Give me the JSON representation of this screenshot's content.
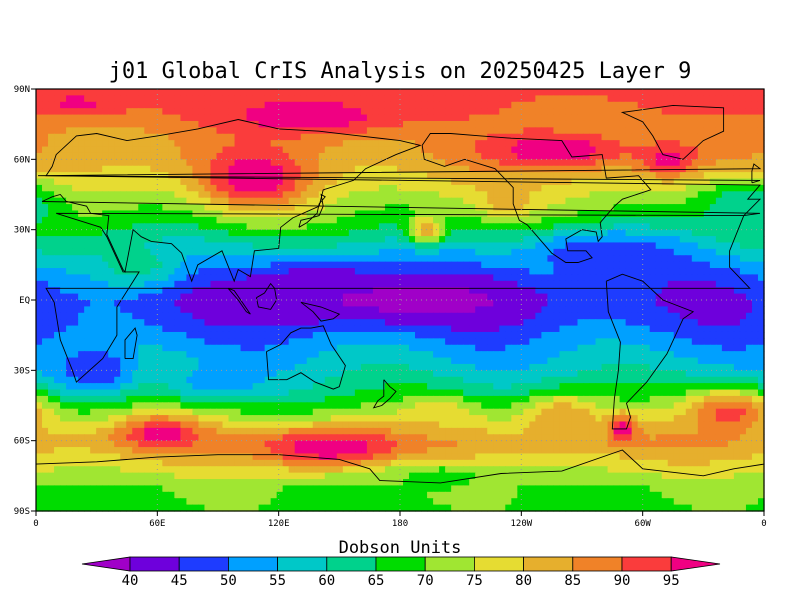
{
  "colors": {
    "frame": "#000000",
    "grid": "#9a9a9a",
    "coast": "#000000",
    "background": "#ffffff"
  },
  "chart_data": {
    "type": "heatmap",
    "title": "j01 Global CrIS Analysis on 20250425 Layer 9",
    "colorbar_label": "Dobson Units",
    "x_ticks": [
      "0",
      "60E",
      "120E",
      "180",
      "120W",
      "60W",
      "0"
    ],
    "y_ticks": [
      "90N",
      "60N",
      "30N",
      "EQ",
      "30S",
      "60S",
      "90S"
    ],
    "xlim": [
      0,
      360
    ],
    "ylim": [
      -90,
      90
    ],
    "grid": true,
    "legend": "bottom",
    "colorbar": {
      "labels": [
        "40",
        "45",
        "50",
        "55",
        "60",
        "65",
        "70",
        "75",
        "80",
        "85",
        "90",
        "95"
      ],
      "levels": [
        40,
        45,
        50,
        55,
        60,
        65,
        70,
        75,
        80,
        85,
        90,
        95
      ],
      "colors": [
        "#a000c8",
        "#6e00dc",
        "#1e3cff",
        "#00a0ff",
        "#00c8c8",
        "#00d28c",
        "#00dc00",
        "#a0e632",
        "#e6dc32",
        "#e6af2d",
        "#f08228",
        "#fa3c3c",
        "#f00082"
      ]
    },
    "zonal_mean_values": [
      {
        "lat": 90,
        "du": 92
      },
      {
        "lat": 80,
        "du": 89
      },
      {
        "lat": 70,
        "du": 85
      },
      {
        "lat": 60,
        "du": 84
      },
      {
        "lat": 50,
        "du": 79
      },
      {
        "lat": 40,
        "du": 73
      },
      {
        "lat": 30,
        "du": 66
      },
      {
        "lat": 20,
        "du": 57
      },
      {
        "lat": 10,
        "du": 49
      },
      {
        "lat": 0,
        "du": 46
      },
      {
        "lat": -10,
        "du": 48
      },
      {
        "lat": -20,
        "du": 53
      },
      {
        "lat": -30,
        "du": 58
      },
      {
        "lat": -40,
        "du": 64
      },
      {
        "lat": -50,
        "du": 74
      },
      {
        "lat": -60,
        "du": 84
      },
      {
        "lat": -70,
        "du": 78
      },
      {
        "lat": -80,
        "du": 70
      },
      {
        "lat": -90,
        "du": 69
      }
    ],
    "anomalies": [
      {
        "lon": 135,
        "lat": 78,
        "du": 100,
        "rlon": 40,
        "rlat": 8
      },
      {
        "lon": 20,
        "lat": 84,
        "du": 96,
        "rlon": 25,
        "rlat": 5
      },
      {
        "lon": 108,
        "lat": 52,
        "du": 100,
        "rlon": 25,
        "rlat": 12
      },
      {
        "lon": 258,
        "lat": 64,
        "du": 100,
        "rlon": 35,
        "rlat": 8
      },
      {
        "lon": 313,
        "lat": 60,
        "du": 98,
        "rlon": 15,
        "rlat": 7
      },
      {
        "lon": 193,
        "lat": 30,
        "du": 85,
        "rlon": 8,
        "rlat": 6
      },
      {
        "lon": 233,
        "lat": 42,
        "du": 85,
        "rlon": 10,
        "rlat": 7
      },
      {
        "lon": 350,
        "lat": 40,
        "du": 60,
        "rlon": 25,
        "rlat": 12
      },
      {
        "lon": 180,
        "lat": 0,
        "du": 38,
        "rlon": 70,
        "rlat": 10
      },
      {
        "lon": 140,
        "lat": 5,
        "du": 40,
        "rlon": 30,
        "rlat": 12
      },
      {
        "lon": 50,
        "lat": 15,
        "du": 62,
        "rlon": 25,
        "rlat": 10
      },
      {
        "lon": 280,
        "lat": 20,
        "du": 45,
        "rlon": 40,
        "rlat": 10
      },
      {
        "lon": 62,
        "lat": -57,
        "du": 98,
        "rlon": 20,
        "rlat": 7
      },
      {
        "lon": 145,
        "lat": -63,
        "du": 100,
        "rlon": 35,
        "rlat": 8
      },
      {
        "lon": 290,
        "lat": -55,
        "du": 100,
        "rlon": 7,
        "rlat": 6
      },
      {
        "lon": 343,
        "lat": -48,
        "du": 92,
        "rlon": 22,
        "rlat": 10
      },
      {
        "lon": 260,
        "lat": -50,
        "du": 85,
        "rlon": 20,
        "rlat": 10
      },
      {
        "lon": 200,
        "lat": -50,
        "du": 80,
        "rlon": 15,
        "rlat": 8
      },
      {
        "lon": 30,
        "lat": -30,
        "du": 45,
        "rlon": 20,
        "rlat": 10
      },
      {
        "lon": 90,
        "lat": -35,
        "du": 52,
        "rlon": 25,
        "rlat": 8
      },
      {
        "lon": 200,
        "lat": -75,
        "du": 68,
        "rlon": 30,
        "rlat": 6
      }
    ]
  }
}
